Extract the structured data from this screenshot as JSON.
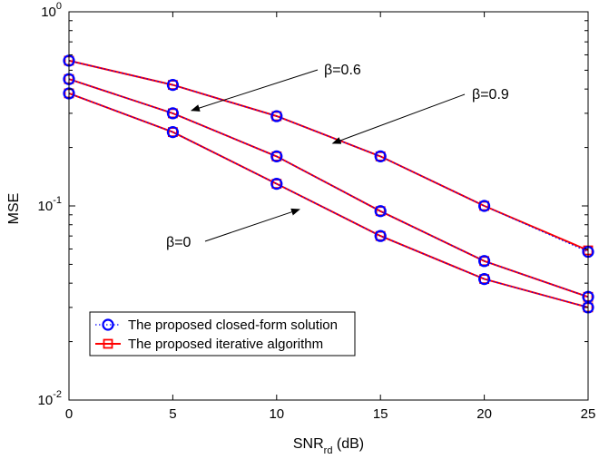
{
  "chart_data": {
    "type": "line",
    "xlabel": "SNR",
    "xlabel_sub": "rd",
    "xlabel_unit": " (dB)",
    "ylabel": "MSE",
    "xlim": [
      0,
      25
    ],
    "ylim": [
      0.01,
      1
    ],
    "yscale": "log",
    "xticks": [
      0,
      5,
      10,
      15,
      20,
      25
    ],
    "yticks": [
      {
        "value": 0.01,
        "base": "10",
        "exp": "-2"
      },
      {
        "value": 0.1,
        "base": "10",
        "exp": "-1"
      },
      {
        "value": 1,
        "base": "10",
        "exp": "0"
      }
    ],
    "grid": false,
    "x": [
      0,
      5,
      10,
      15,
      20,
      25
    ],
    "series": [
      {
        "name": "The proposed closed-form solution",
        "color": "#0000ff",
        "marker": "circle",
        "linestyle": "dotted",
        "curves": [
          {
            "label": "β=0.9",
            "values": [
              0.56,
              0.42,
              0.29,
              0.18,
              0.1,
              0.058
            ]
          },
          {
            "label": "β=0.6",
            "values": [
              0.45,
              0.3,
              0.18,
              0.094,
              0.052,
              0.034
            ]
          },
          {
            "label": "β=0",
            "values": [
              0.38,
              0.24,
              0.13,
              0.07,
              0.042,
              0.03
            ]
          }
        ]
      },
      {
        "name": "The proposed iterative algorithm",
        "color": "#ff0000",
        "marker": "square",
        "linestyle": "solid",
        "curves": [
          {
            "label": "β=0.9",
            "values": [
              0.56,
              0.42,
              0.29,
              0.18,
              0.1,
              0.059
            ]
          },
          {
            "label": "β=0.6",
            "values": [
              0.45,
              0.3,
              0.18,
              0.094,
              0.052,
              0.034
            ]
          },
          {
            "label": "β=0",
            "values": [
              0.38,
              0.24,
              0.13,
              0.07,
              0.042,
              0.03
            ]
          }
        ]
      }
    ],
    "annotations": [
      {
        "text": "β=0.6",
        "target": {
          "x": 5.9,
          "y": 0.31
        }
      },
      {
        "text": "β=0.9",
        "target": {
          "x": 12.7,
          "y": 0.21
        }
      },
      {
        "text": "β=0",
        "target": {
          "x": 11.1,
          "y": 0.096
        }
      }
    ],
    "legend_position": "bottom-left"
  }
}
